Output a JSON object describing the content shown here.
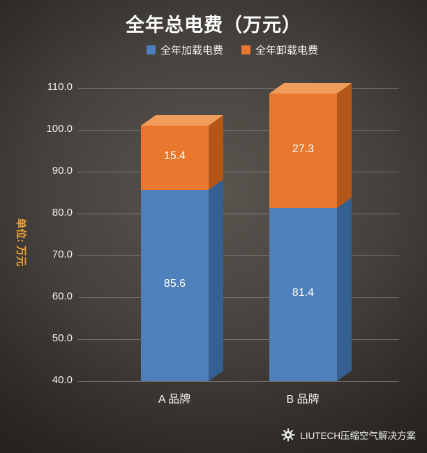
{
  "chart_data": {
    "type": "bar",
    "variant": "3d-stacked-column",
    "title": "全年总电费（万元）",
    "ylabel": "单位: 万元",
    "ylabel_color": "#EDA23C",
    "categories": [
      "A 品牌",
      "B 品牌"
    ],
    "series": [
      {
        "name": "全年加载电费",
        "values": [
          85.6,
          81.4
        ],
        "color": "#4E80BC",
        "color_dark": "#35608F",
        "color_light": "#6E9CCB"
      },
      {
        "name": "全年卸载电费",
        "values": [
          15.4,
          27.3
        ],
        "color": "#E9782E",
        "color_dark": "#B4551A",
        "color_light": "#F29C5B"
      }
    ],
    "ylim": [
      40,
      110
    ],
    "yticks": [
      40,
      50,
      60,
      70,
      80,
      90,
      100,
      110
    ],
    "ytick_labels": [
      "40.0",
      "50.0",
      "60.0",
      "70.0",
      "80.0",
      "90.0",
      "100.0",
      "110.0"
    ],
    "grid": true,
    "legend_position": "top-center"
  },
  "footer": {
    "watermark": "LIUTECH压缩空气解决方案"
  }
}
